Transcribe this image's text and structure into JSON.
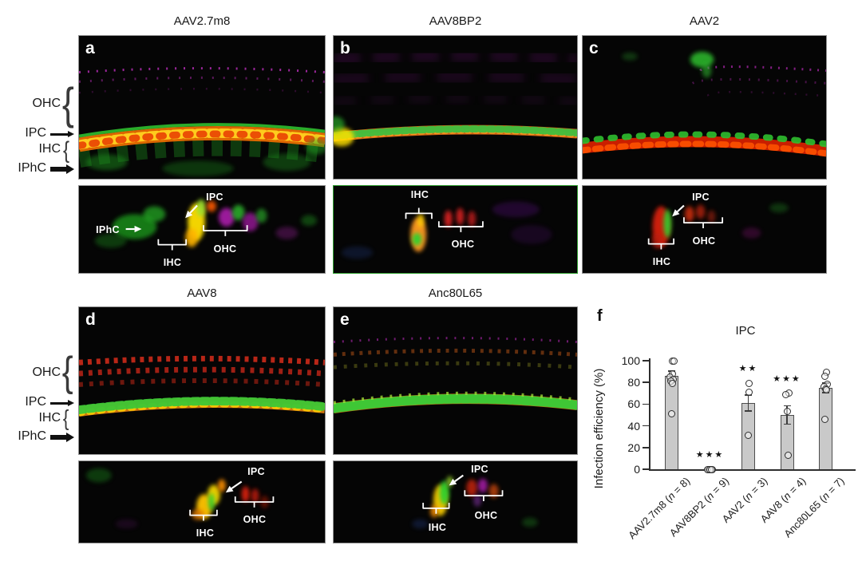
{
  "panel_titles": {
    "a": "AAV2.7m8",
    "b": "AAV8BP2",
    "c": "AAV2",
    "d": "AAV8",
    "e": "Anc80L65"
  },
  "panel_letters": {
    "a": "a",
    "b": "b",
    "c": "c",
    "d": "d",
    "e": "e",
    "f": "f"
  },
  "side_labels": {
    "ohc": "OHC",
    "ipc": "IPC",
    "ihc": "IHC",
    "iphc": "IPhC"
  },
  "sub_labels": {
    "ipc": "IPC",
    "ihc": "IHC",
    "ohc": "OHC",
    "iphc": "IPhC"
  },
  "chart_data": {
    "type": "bar",
    "title": "IPC",
    "ylabel": "Infection efficiency (%)",
    "ylim": [
      0,
      100
    ],
    "yticks": [
      0,
      20,
      40,
      60,
      80,
      100
    ],
    "grid": false,
    "legend_position": "none",
    "categories": [
      "AAV2.7m8 (n = 8)",
      "AAV8BP2 (n = 9)",
      "AAV2 (n = 3)",
      "AAV8 (n = 4)",
      "Anc80L65 (n = 7)"
    ],
    "values": [
      86,
      0,
      61,
      50,
      75
    ],
    "errors": [
      5,
      0,
      8,
      9,
      5
    ],
    "significance": [
      "",
      "***",
      "**",
      "***",
      ""
    ],
    "points": [
      [
        100,
        100,
        88,
        85,
        83,
        81,
        79,
        51
      ],
      [
        0,
        0,
        0,
        0,
        0,
        0,
        0,
        0,
        0
      ],
      [
        79,
        71,
        31
      ],
      [
        70,
        69,
        53,
        13
      ],
      [
        89,
        86,
        78,
        76,
        74,
        73,
        46
      ]
    ],
    "bar_color": "#c9c9c9",
    "bar_border": "#4d4d4d"
  }
}
